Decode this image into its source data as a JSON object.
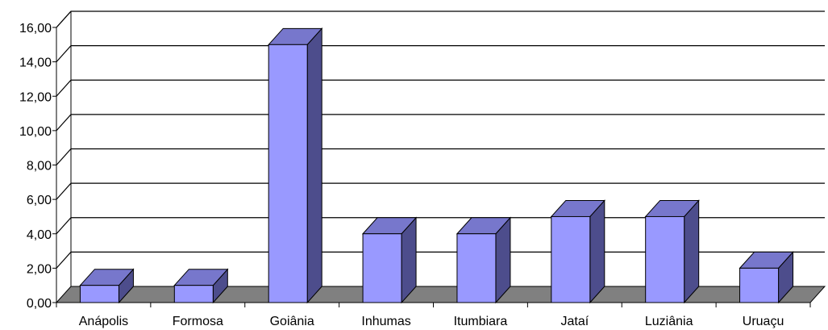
{
  "chart_data": {
    "type": "bar",
    "categories": [
      "Anápolis",
      "Formosa",
      "Goiânia",
      "Inhumas",
      "Itumbiara",
      "Jataí",
      "Luziânia",
      "Uruaçu"
    ],
    "values": [
      1,
      1,
      15,
      4,
      4,
      5,
      5,
      2
    ],
    "ylim": [
      0,
      16
    ],
    "yticks": [
      "0,00",
      "2,00",
      "4,00",
      "6,00",
      "8,00",
      "10,00",
      "12,00",
      "14,00",
      "16,00"
    ],
    "title": "",
    "xlabel": "",
    "ylabel": "",
    "grid": true,
    "legend": "none",
    "style": "3d-column",
    "colors": {
      "bar_front": "#9999ff",
      "bar_top": "#7777cc",
      "bar_side": "#4d4d8c",
      "floor": "#808080",
      "grid": "#000000"
    }
  }
}
